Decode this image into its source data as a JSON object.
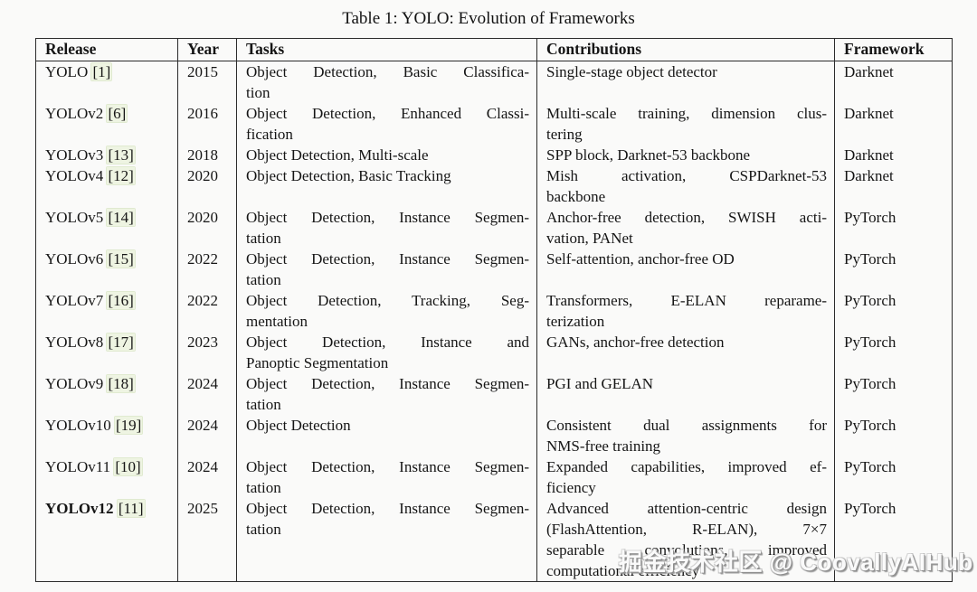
{
  "table": {
    "title": "Table 1: YOLO: Evolution of Frameworks",
    "columns": [
      "Release",
      "Year",
      "Tasks",
      "Contributions",
      "Framework"
    ],
    "rows": [
      {
        "name": "YOLO",
        "cite": "[1]",
        "year": "2015",
        "bold": false,
        "tasks": "Object Detection, Basic Classifica-\ntion",
        "contributions": "Single-stage object detector",
        "framework": "Darknet"
      },
      {
        "name": "YOLOv2",
        "cite": "[6]",
        "year": "2016",
        "bold": false,
        "tasks": "Object Detection, Enhanced Classi-\nfication",
        "contributions": "Multi-scale training, dimension clus-\ntering",
        "framework": "Darknet"
      },
      {
        "name": "YOLOv3",
        "cite": "[13]",
        "year": "2018",
        "bold": false,
        "tasks": "Object Detection, Multi-scale",
        "contributions": "SPP block, Darknet-53 backbone",
        "framework": "Darknet"
      },
      {
        "name": "YOLOv4",
        "cite": "[12]",
        "year": "2020",
        "bold": false,
        "tasks": "Object Detection, Basic Tracking",
        "contributions": "Mish activation, CSPDarknet-53\nbackbone",
        "framework": "Darknet"
      },
      {
        "name": "YOLOv5",
        "cite": "[14]",
        "year": "2020",
        "bold": false,
        "tasks": "Object Detection, Instance Segmen-\ntation",
        "contributions": "Anchor-free detection, SWISH acti-\nvation, PANet",
        "framework": "PyTorch"
      },
      {
        "name": "YOLOv6",
        "cite": "[15]",
        "year": "2022",
        "bold": false,
        "tasks": "Object Detection, Instance Segmen-\ntation",
        "contributions": "Self-attention, anchor-free OD",
        "framework": "PyTorch"
      },
      {
        "name": "YOLOv7",
        "cite": "[16]",
        "year": "2022",
        "bold": false,
        "tasks": "Object Detection, Tracking, Seg-\nmentation",
        "contributions": "Transformers, E-ELAN reparame-\nterization",
        "framework": "PyTorch"
      },
      {
        "name": "YOLOv8",
        "cite": "[17]",
        "year": "2023",
        "bold": false,
        "tasks": "Object Detection, Instance and\nPanoptic Segmentation",
        "contributions": "GANs, anchor-free detection",
        "framework": "PyTorch"
      },
      {
        "name": "YOLOv9",
        "cite": "[18]",
        "year": "2024",
        "bold": false,
        "tasks": "Object Detection, Instance Segmen-\ntation",
        "contributions": "PGI and GELAN",
        "framework": "PyTorch"
      },
      {
        "name": "YOLOv10",
        "cite": "[19]",
        "year": "2024",
        "bold": false,
        "tasks": "Object Detection",
        "contributions": "Consistent dual assignments for\nNMS-free training",
        "framework": "PyTorch"
      },
      {
        "name": "YOLOv11",
        "cite": "[10]",
        "year": "2024",
        "bold": false,
        "tasks": "Object Detection, Instance Segmen-\ntation",
        "contributions": "Expanded capabilities, improved ef-\nficiency",
        "framework": "PyTorch"
      },
      {
        "name": "YOLOv12",
        "cite": "[11]",
        "year": "2025",
        "bold": true,
        "tasks": "Object Detection, Instance Segmen-\ntation",
        "contributions": "Advanced attention-centric design\n(FlashAttention, R-ELAN), 7×7\nseparable convolutions, improved\ncomputational efficiency",
        "framework": "PyTorch"
      }
    ]
  },
  "watermark": {
    "text": "掘金技术社区 @ CoovallyAIHub"
  },
  "colors": {
    "table_border": "#2b2b2b",
    "text": "#151515",
    "page_background": "#fafaf9",
    "citation_highlight": "#eef4e2",
    "watermark_fill": "#ffffff",
    "watermark_shadow": "#8d8d8d"
  }
}
